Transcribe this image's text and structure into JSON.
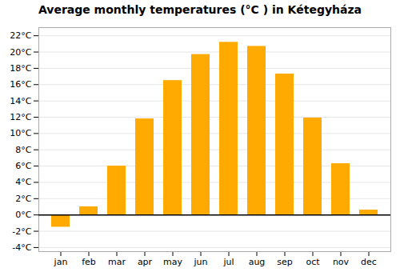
{
  "chart_data": {
    "type": "bar",
    "title": "Average monthly temperatures (°C ) in Kétegyháza",
    "categories": [
      "jan",
      "feb",
      "mar",
      "apr",
      "may",
      "jun",
      "jul",
      "aug",
      "sep",
      "oct",
      "nov",
      "dec"
    ],
    "values": [
      -1.5,
      1.0,
      6.0,
      11.8,
      16.5,
      19.7,
      21.2,
      20.7,
      17.3,
      11.9,
      6.3,
      0.6
    ],
    "color": "#FFAA00",
    "ylim": [
      -4.5,
      23
    ],
    "yticks": [
      {
        "value": -4,
        "label": "-4°C"
      },
      {
        "value": -2,
        "label": "-2°C"
      },
      {
        "value": 0,
        "label": "0°C"
      },
      {
        "value": 2,
        "label": "2°C"
      },
      {
        "value": 4,
        "label": "4°C"
      },
      {
        "value": 6,
        "label": "6°C"
      },
      {
        "value": 8,
        "label": "8°C"
      },
      {
        "value": 10,
        "label": "10°C"
      },
      {
        "value": 12,
        "label": "12°C"
      },
      {
        "value": 14,
        "label": "14°C"
      },
      {
        "value": 16,
        "label": "16°C"
      },
      {
        "value": 18,
        "label": "18°C"
      },
      {
        "value": 20,
        "label": "20°C"
      },
      {
        "value": 22,
        "label": "22°C"
      }
    ],
    "grid": true
  }
}
